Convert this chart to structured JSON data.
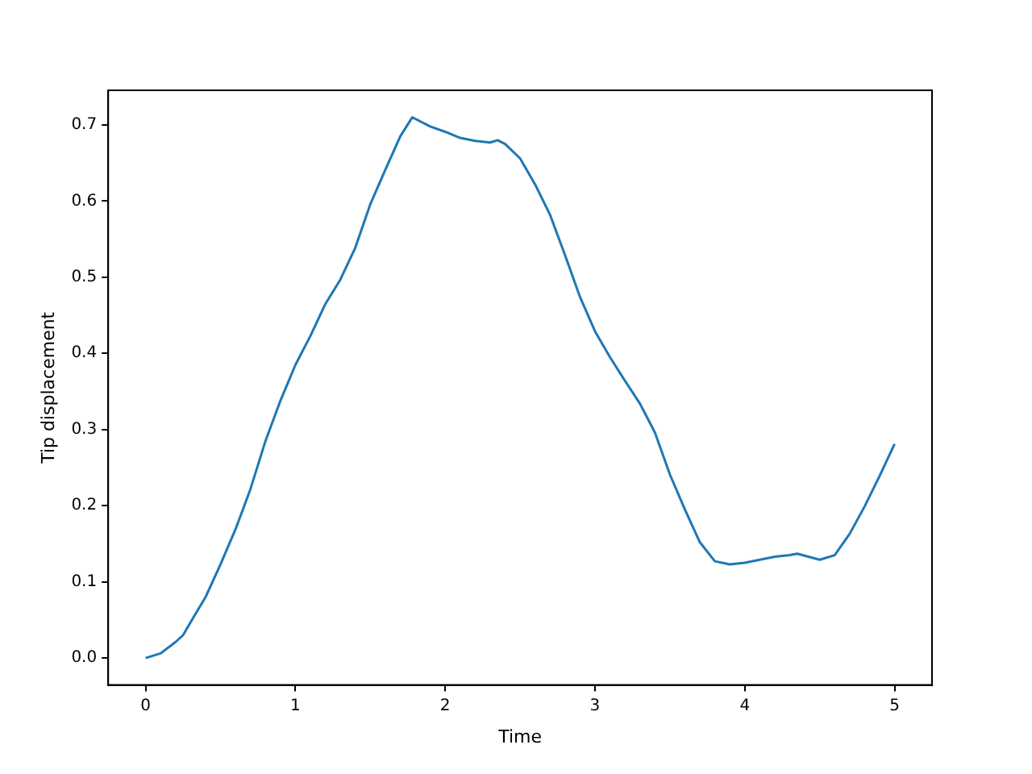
{
  "chart_data": {
    "type": "line",
    "xlabel": "Time",
    "ylabel": "Tip displacement",
    "x": [
      0,
      0.1,
      0.2,
      0.25,
      0.3,
      0.4,
      0.5,
      0.6,
      0.7,
      0.8,
      0.9,
      1.0,
      1.1,
      1.2,
      1.3,
      1.4,
      1.5,
      1.6,
      1.7,
      1.78,
      1.9,
      2.0,
      2.1,
      2.2,
      2.3,
      2.35,
      2.4,
      2.5,
      2.6,
      2.7,
      2.8,
      2.9,
      3.0,
      3.1,
      3.2,
      3.3,
      3.4,
      3.5,
      3.6,
      3.7,
      3.8,
      3.9,
      4.0,
      4.1,
      4.2,
      4.3,
      4.35,
      4.5,
      4.6,
      4.7,
      4.8,
      4.9,
      5.0
    ],
    "series": [
      {
        "color": "#1f77b4",
        "values": [
          0,
          0.006,
          0.021,
          0.03,
          0.047,
          0.08,
          0.123,
          0.169,
          0.222,
          0.285,
          0.338,
          0.385,
          0.423,
          0.465,
          0.497,
          0.539,
          0.596,
          0.641,
          0.685,
          0.71,
          0.698,
          0.691,
          0.683,
          0.679,
          0.677,
          0.68,
          0.675,
          0.656,
          0.622,
          0.582,
          0.529,
          0.474,
          0.429,
          0.395,
          0.364,
          0.334,
          0.296,
          0.241,
          0.195,
          0.152,
          0.127,
          0.123,
          0.125,
          0.129,
          0.133,
          0.135,
          0.137,
          0.129,
          0.135,
          0.163,
          0.199,
          0.239,
          0.281
        ]
      }
    ],
    "xlim": [
      -0.25,
      5.25
    ],
    "xticks": [
      0,
      1,
      2,
      3,
      4,
      5
    ],
    "ylim": [
      -0.0355,
      0.7455
    ],
    "yticks": [
      {
        "value": 0,
        "label": "0.0"
      },
      {
        "value": 0.1,
        "label": "0.1"
      },
      {
        "value": 0.2,
        "label": "0.2"
      },
      {
        "value": 0.3,
        "label": "0.3"
      },
      {
        "value": 0.4,
        "label": "0.4"
      },
      {
        "value": 0.5,
        "label": "0.5"
      },
      {
        "value": 0.6,
        "label": "0.6"
      },
      {
        "value": 0.7,
        "label": "0.7"
      }
    ],
    "grid": false,
    "legend": false
  }
}
